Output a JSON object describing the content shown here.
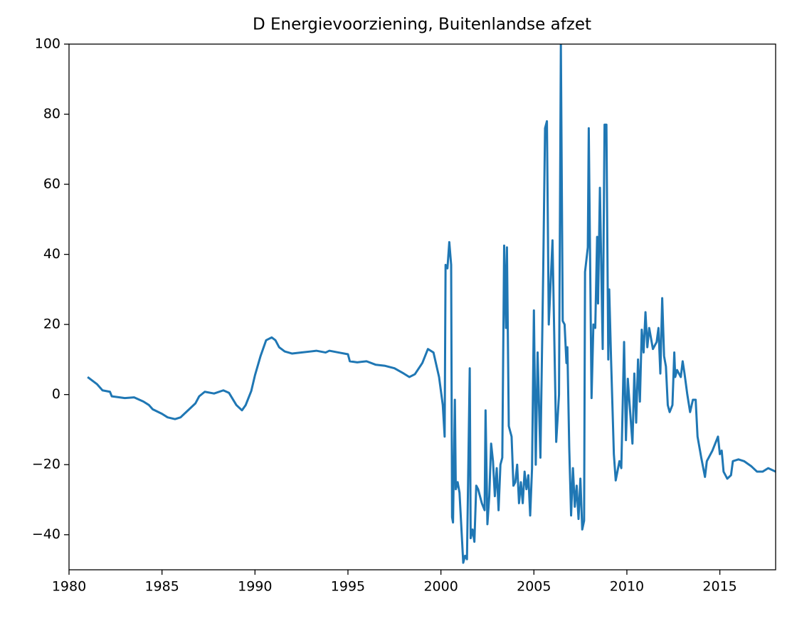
{
  "chart_data": {
    "type": "line",
    "title": "D Energievoorziening, Buitenlandse afzet",
    "color": "#1f77b4",
    "xlim": [
      1980,
      2018
    ],
    "xticks": [
      1980,
      1985,
      1990,
      1995,
      2000,
      2005,
      2010,
      2015
    ],
    "ylim": [
      -50,
      100
    ],
    "yticks": [
      {
        "value": -40,
        "label": "−40"
      },
      {
        "value": -20,
        "label": "−20"
      },
      0,
      20,
      40,
      60,
      80,
      100
    ],
    "x": [
      1981.0,
      1981.5,
      1981.8,
      1982.2,
      1982.3,
      1983.0,
      1983.5,
      1984.0,
      1984.3,
      1984.5,
      1985.0,
      1985.3,
      1985.7,
      1986.0,
      1986.5,
      1986.8,
      1987.0,
      1987.3,
      1987.8,
      1988.3,
      1988.6,
      1989.0,
      1989.3,
      1989.5,
      1989.8,
      1990.0,
      1990.3,
      1990.6,
      1990.9,
      1991.1,
      1991.3,
      1991.6,
      1992.0,
      1992.5,
      1993.0,
      1993.3,
      1993.8,
      1994.0,
      1994.5,
      1995.0,
      1995.1,
      1995.5,
      1996.0,
      1996.5,
      1997.0,
      1997.5,
      1998.0,
      1998.3,
      1998.6,
      1999.0,
      1999.3,
      1999.6,
      1999.9,
      2000.1,
      2000.2,
      2000.25,
      2000.35,
      2000.45,
      2000.55,
      2000.6,
      2000.65,
      2000.75,
      2000.8,
      2000.9,
      2001.0,
      2001.1,
      2001.2,
      2001.3,
      2001.4,
      2001.55,
      2001.6,
      2001.7,
      2001.8,
      2001.9,
      2002.0,
      2002.2,
      2002.35,
      2002.4,
      2002.5,
      2002.6,
      2002.7,
      2002.8,
      2002.9,
      2003.0,
      2003.1,
      2003.2,
      2003.3,
      2003.4,
      2003.5,
      2003.55,
      2003.65,
      2003.8,
      2003.9,
      2004.0,
      2004.1,
      2004.2,
      2004.3,
      2004.4,
      2004.5,
      2004.6,
      2004.7,
      2004.8,
      2004.9,
      2005.0,
      2005.1,
      2005.2,
      2005.35,
      2005.5,
      2005.6,
      2005.7,
      2005.8,
      2006.0,
      2006.2,
      2006.35,
      2006.45,
      2006.55,
      2006.65,
      2006.75,
      2006.8,
      2006.9,
      2007.0,
      2007.1,
      2007.2,
      2007.3,
      2007.4,
      2007.5,
      2007.6,
      2007.7,
      2007.75,
      2007.9,
      2007.95,
      2008.1,
      2008.2,
      2008.3,
      2008.4,
      2008.45,
      2008.55,
      2008.7,
      2008.8,
      2008.9,
      2009.0,
      2009.05,
      2009.15,
      2009.3,
      2009.4,
      2009.6,
      2009.7,
      2009.85,
      2009.95,
      2010.05,
      2010.15,
      2010.3,
      2010.4,
      2010.5,
      2010.6,
      2010.7,
      2010.8,
      2010.9,
      2011.0,
      2011.1,
      2011.2,
      2011.4,
      2011.6,
      2011.7,
      2011.8,
      2011.9,
      2012.0,
      2012.1,
      2012.2,
      2012.3,
      2012.45,
      2012.55,
      2012.6,
      2012.7,
      2012.8,
      2012.9,
      2013.0,
      2013.1,
      2013.25,
      2013.4,
      2013.55,
      2013.7,
      2013.8,
      2014.0,
      2014.2,
      2014.3,
      2014.6,
      2014.9,
      2015.0,
      2015.1,
      2015.2,
      2015.4,
      2015.6,
      2015.7,
      2016.0,
      2016.3,
      2016.7,
      2017.0,
      2017.3,
      2017.6,
      2018.0
    ],
    "values": [
      5,
      3,
      1.2,
      0.8,
      -0.5,
      -1,
      -0.8,
      -2,
      -3,
      -4.2,
      -5.5,
      -6.5,
      -7,
      -6.5,
      -4,
      -2.5,
      -0.5,
      0.8,
      0.3,
      1.2,
      0.5,
      -3,
      -4.5,
      -3,
      1,
      5.5,
      11,
      15.5,
      16.3,
      15.5,
      13.5,
      12.3,
      11.7,
      12,
      12.3,
      12.5,
      12,
      12.5,
      12,
      11.5,
      9.5,
      9.2,
      9.5,
      8.5,
      8.2,
      7.5,
      6,
      5,
      5.8,
      9,
      13,
      12,
      5,
      -3,
      -12,
      37,
      36,
      43.5,
      37,
      -35,
      -36.5,
      -1.5,
      -27,
      -25,
      -28,
      -38,
      -48,
      -46,
      -47,
      7.5,
      -41,
      -38.5,
      -42,
      -26,
      -27,
      -31,
      -33,
      -4.5,
      -37,
      -29,
      -14,
      -19,
      -29,
      -21,
      -33,
      -20,
      -18,
      42.5,
      19,
      42,
      -9,
      -12,
      -26,
      -25,
      -20,
      -31,
      -25,
      -31,
      -22,
      -27,
      -23,
      -34.5,
      -21,
      24,
      -20,
      12,
      -18,
      35,
      76,
      78,
      20,
      44,
      -13.5,
      0,
      100,
      21,
      20,
      9,
      13.5,
      -15,
      -34.5,
      -21,
      -32,
      -26,
      -35.5,
      -24,
      -38.5,
      -36,
      35,
      42,
      76,
      -1,
      20,
      19,
      45,
      26,
      59,
      13,
      77,
      77,
      10,
      30,
      10,
      -17,
      -24.5,
      -19,
      -21,
      15,
      -13,
      4.5,
      -3,
      -14,
      6,
      -8,
      10,
      -2,
      18.5,
      12,
      23.5,
      13.5,
      19,
      13,
      15,
      19,
      6,
      27.5,
      11,
      8,
      -3,
      -5,
      -3,
      12,
      5,
      7,
      6,
      5,
      9.5,
      6,
      0,
      -5,
      -1.5,
      -1.5,
      -12,
      -18,
      -23.5,
      -19,
      -16,
      -12,
      -17,
      -16,
      -22,
      -24,
      -23,
      -19,
      -18.5,
      -19,
      -20.5,
      -22,
      -22,
      -21,
      -22
    ]
  }
}
